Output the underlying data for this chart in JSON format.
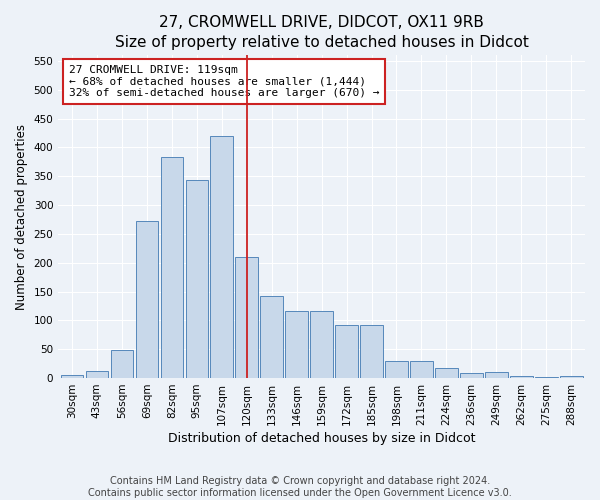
{
  "title": "27, CROMWELL DRIVE, DIDCOT, OX11 9RB",
  "subtitle": "Size of property relative to detached houses in Didcot",
  "xlabel": "Distribution of detached houses by size in Didcot",
  "ylabel": "Number of detached properties",
  "categories": [
    "30sqm",
    "43sqm",
    "56sqm",
    "69sqm",
    "82sqm",
    "95sqm",
    "107sqm",
    "120sqm",
    "133sqm",
    "146sqm",
    "159sqm",
    "172sqm",
    "185sqm",
    "198sqm",
    "211sqm",
    "224sqm",
    "236sqm",
    "249sqm",
    "262sqm",
    "275sqm",
    "288sqm"
  ],
  "values": [
    5,
    12,
    49,
    272,
    384,
    344,
    420,
    210,
    143,
    116,
    116,
    92,
    92,
    30,
    30,
    18,
    9,
    11,
    4,
    1,
    4
  ],
  "bar_color": "#c8d8ea",
  "bar_edge_color": "#5588bb",
  "background_color": "#edf2f8",
  "vline_x": 7,
  "vline_color": "#cc2222",
  "annotation_text": "27 CROMWELL DRIVE: 119sqm\n← 68% of detached houses are smaller (1,444)\n32% of semi-detached houses are larger (670) →",
  "annotation_box_color": "#ffffff",
  "annotation_box_edge": "#cc2222",
  "footer": "Contains HM Land Registry data © Crown copyright and database right 2024.\nContains public sector information licensed under the Open Government Licence v3.0.",
  "ylim": [
    0,
    560
  ],
  "yticks": [
    0,
    50,
    100,
    150,
    200,
    250,
    300,
    350,
    400,
    450,
    500,
    550
  ],
  "title_fontsize": 11,
  "subtitle_fontsize": 9,
  "axis_label_fontsize": 8.5,
  "tick_fontsize": 7.5,
  "footer_fontsize": 7
}
